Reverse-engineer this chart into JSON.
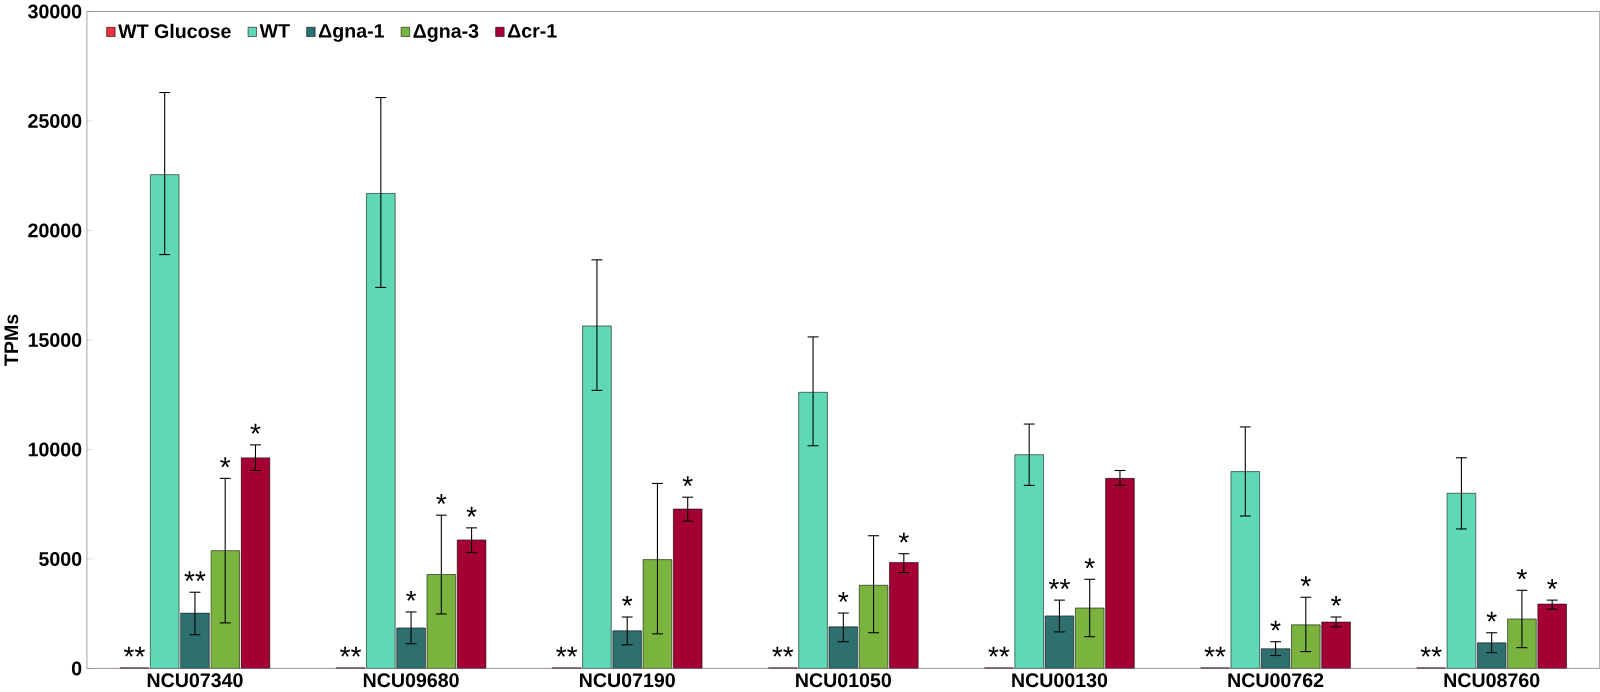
{
  "chart_data": {
    "type": "bar",
    "ylabel": "TPMs",
    "categories": [
      "NCU07340",
      "NCU09680",
      "NCU07190",
      "NCU01050",
      "NCU00130",
      "NCU00762",
      "NCU08760"
    ],
    "ylim": [
      0,
      30000
    ],
    "yticks": [
      0,
      5000,
      10000,
      15000,
      20000,
      25000,
      30000
    ],
    "grid": false,
    "legend": "top left",
    "series": [
      {
        "name": "WT Glucose",
        "color": "#e8323c",
        "values": [
          30,
          30,
          30,
          30,
          30,
          30,
          30
        ],
        "value_labels": [
          "**",
          "**",
          "**",
          "**",
          "**",
          "**",
          "**"
        ]
      },
      {
        "name": "WT",
        "color": "#5fd8b6",
        "values": [
          22550,
          21690,
          15640,
          12610,
          9760,
          8990,
          8000
        ],
        "errors": [
          [
            18900,
            26300
          ],
          [
            17400,
            26070
          ],
          [
            12700,
            18660
          ],
          [
            10170,
            15140
          ],
          [
            8360,
            11160
          ],
          [
            6960,
            11030
          ],
          [
            6370,
            9620
          ]
        ]
      },
      {
        "name": "Δgna-1",
        "color": "#2e7070",
        "values": [
          2530,
          1850,
          1720,
          1900,
          2400,
          900,
          1170
        ],
        "errors": [
          [
            1540,
            3480
          ],
          [
            1130,
            2580
          ],
          [
            1080,
            2350
          ],
          [
            1220,
            2530
          ],
          [
            1670,
            3120
          ],
          [
            590,
            1220
          ],
          [
            720,
            1630
          ]
        ],
        "value_labels": [
          "**",
          "*",
          "*",
          "*",
          "**",
          "*",
          "*"
        ]
      },
      {
        "name": "Δgna-3",
        "color": "#7ab33e",
        "values": [
          5380,
          4290,
          4970,
          3800,
          2760,
          1990,
          2260
        ],
        "errors": [
          [
            2080,
            8680
          ],
          [
            2490,
            7000
          ],
          [
            1580,
            8450
          ],
          [
            1630,
            6060
          ],
          [
            1450,
            4070
          ],
          [
            770,
            3250
          ],
          [
            950,
            3570
          ]
        ],
        "value_labels": [
          "*",
          "*",
          null,
          null,
          "*",
          "*",
          "*"
        ]
      },
      {
        "name": "Δcr-1",
        "color": "#a50034",
        "values": [
          9620,
          5870,
          7280,
          4840,
          8680,
          2120,
          2940
        ],
        "errors": [
          [
            9040,
            10210
          ],
          [
            5290,
            6420
          ],
          [
            6730,
            7820
          ],
          [
            4380,
            5240
          ],
          [
            8360,
            9040
          ],
          [
            1900,
            2350
          ],
          [
            2710,
            3120
          ]
        ],
        "value_labels": [
          "*",
          "*",
          "*",
          "*",
          null,
          "*",
          "*"
        ]
      }
    ]
  }
}
